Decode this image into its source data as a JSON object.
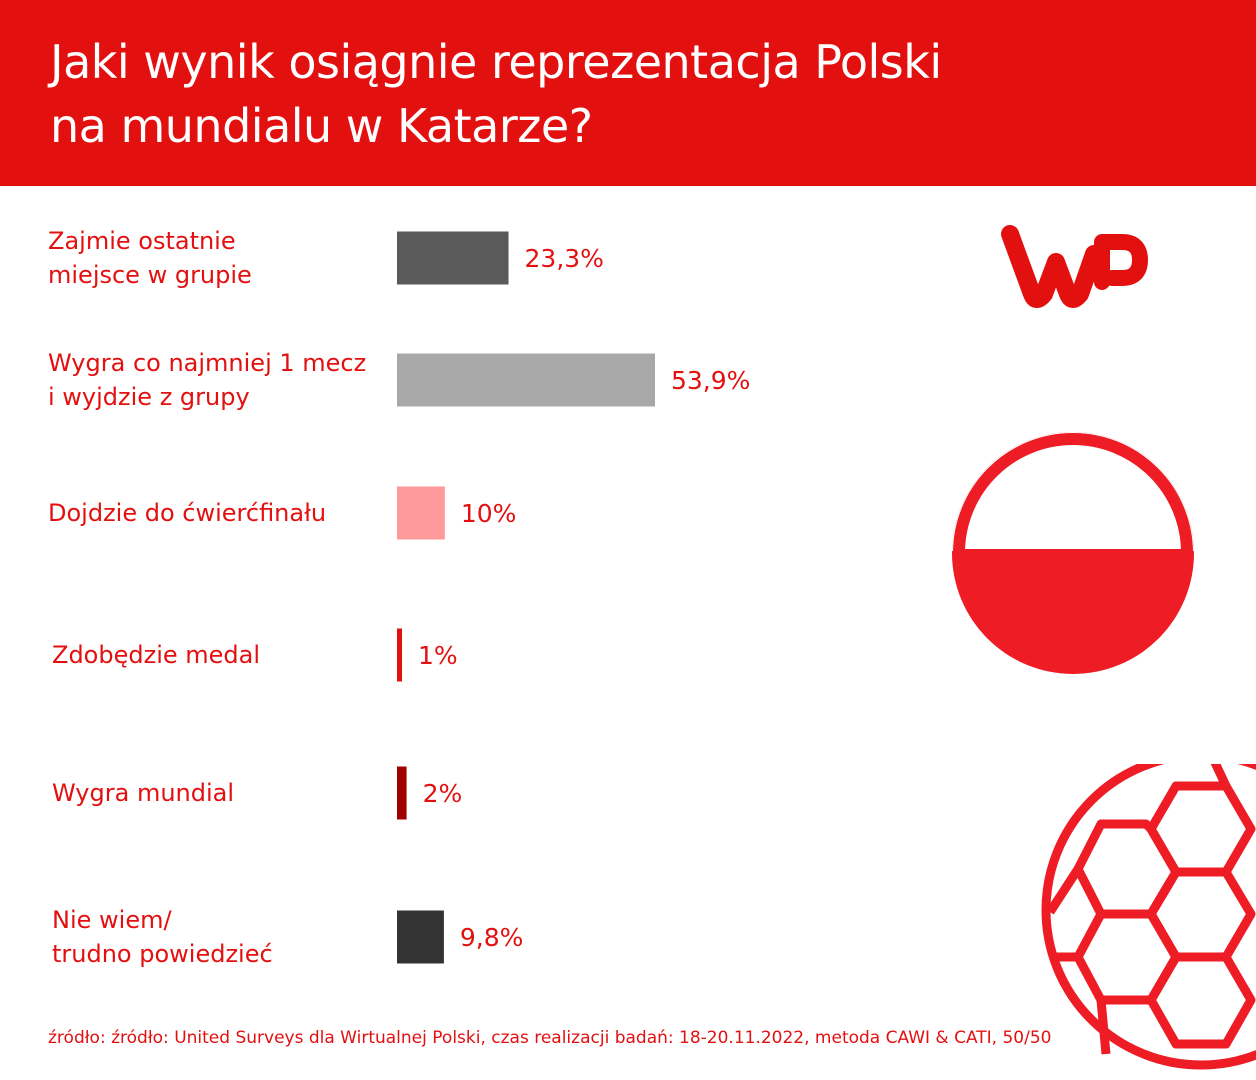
{
  "chart_data": {
    "type": "bar",
    "orientation": "horizontal",
    "title": "Jaki wynik osiągnie reprezentacja Polski na mundialu w Katarze?",
    "categories": [
      [
        "Zajmie ostatnie",
        "miejsce w grupie"
      ],
      [
        "Wygra co najmniej 1 mecz",
        "i wyjdzie z grupy"
      ],
      [
        "Dojdzie do ćwierćfinału"
      ],
      [
        "Zdobędzie medal"
      ],
      [
        "Wygra mundial"
      ],
      [
        "Nie wiem/",
        "trudno powiedzieć"
      ]
    ],
    "values": [
      23.3,
      53.9,
      10,
      1,
      2,
      9.8
    ],
    "value_labels": [
      "23,3%",
      "53,9%",
      "10%",
      "1%",
      "2%",
      "9,8%"
    ],
    "bar_colors": [
      "#5a5a5a",
      "#a8a8a8",
      "#ff9a9a",
      "#e31010",
      "#a00000",
      "#333333"
    ],
    "xlabel": "",
    "ylabel": "",
    "xlim": [
      0,
      53.9
    ],
    "grid": false,
    "legend": "none"
  },
  "colors": {
    "accent": "#e31010",
    "header_text": "#ffffff"
  },
  "icons": [
    "wp-logo-icon",
    "poland-flag-ball-icon",
    "football-icon"
  ],
  "source": "źródło: źródło: United Surveys dla Wirtualnej Polski, czas realizacji badań: 18-20.11.2022, metoda CAWI & CATI, 50/50"
}
